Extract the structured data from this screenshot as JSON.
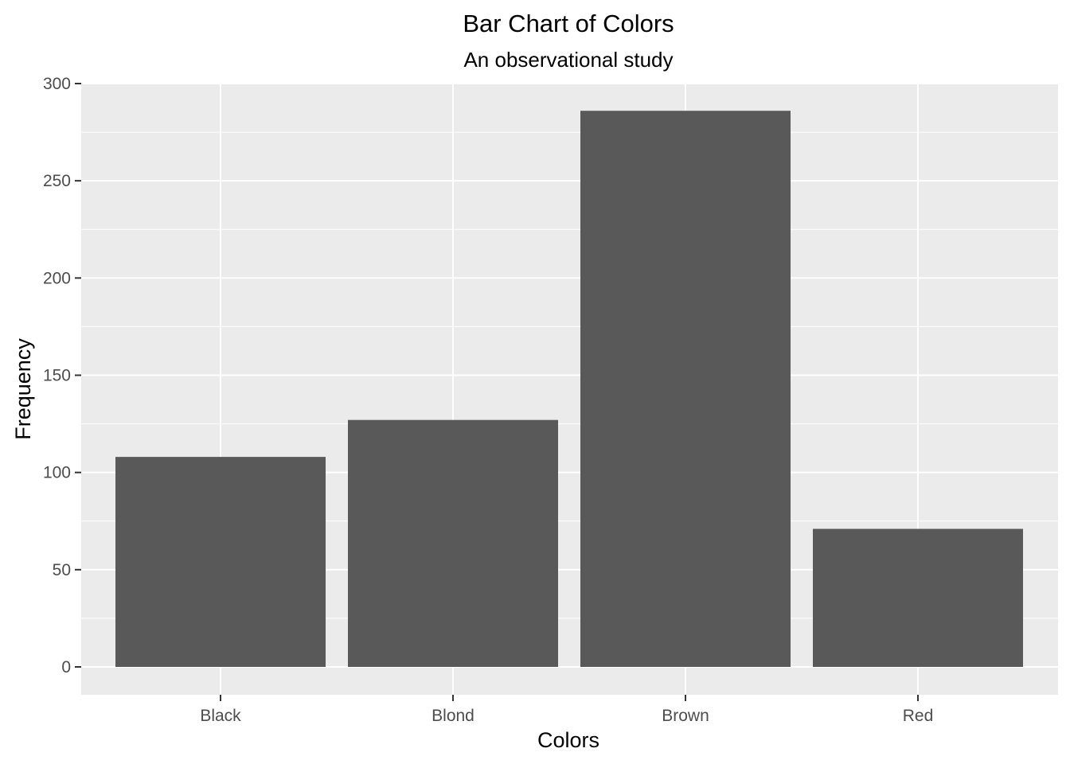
{
  "chart_data": {
    "type": "bar",
    "title": "Bar Chart of Colors",
    "subtitle": "An observational study",
    "xlabel": "Colors",
    "ylabel": "Frequency",
    "categories": [
      "Black",
      "Blond",
      "Brown",
      "Red"
    ],
    "values": [
      108,
      127,
      286,
      71
    ],
    "ylim": [
      -14,
      300
    ],
    "yticks": [
      0,
      50,
      100,
      150,
      200,
      250,
      300
    ],
    "grid": true,
    "legend": "none",
    "colors": {
      "panel_background": "#ebebeb",
      "grid": "#ffffff",
      "bar_fill": "#595959",
      "tick_text": "#4d4d4d",
      "tick_mark": "#333333"
    }
  }
}
